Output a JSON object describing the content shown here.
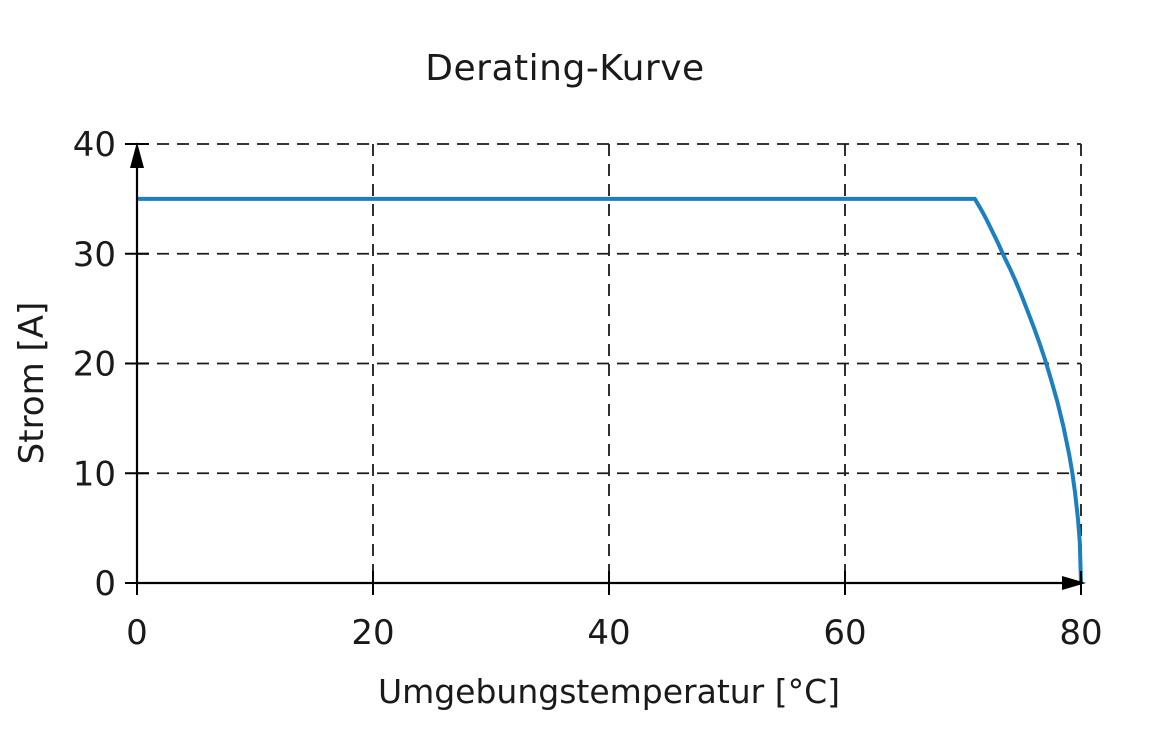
{
  "chart_data": {
    "type": "line",
    "title": "Derating-Kurve",
    "xlabel": "Umgebungstemperatur [°C]",
    "ylabel": "Strom [A]",
    "xlim": [
      0,
      80
    ],
    "ylim": [
      0,
      40
    ],
    "x_ticks": [
      0,
      20,
      40,
      60,
      80
    ],
    "y_ticks": [
      0,
      10,
      20,
      30,
      40
    ],
    "grid": "dashed",
    "legend": "none",
    "axis_arrows": true,
    "colors": {
      "line": "#1b7fc0",
      "axis": "#000000",
      "grid": "#1a1a1a",
      "text": "#1a1a1a",
      "background": "#ffffff"
    },
    "line_width": 4,
    "series": [
      {
        "name": "Derating-Kurve",
        "points": [
          [
            0,
            35
          ],
          [
            71,
            35
          ],
          [
            71.5,
            34.1
          ],
          [
            72,
            33.1
          ],
          [
            72.5,
            32.0
          ],
          [
            73,
            30.9
          ],
          [
            73.5,
            29.7
          ],
          [
            74,
            28.6
          ],
          [
            74.5,
            27.4
          ],
          [
            75,
            26.1
          ],
          [
            75.5,
            24.7
          ],
          [
            76,
            23.3
          ],
          [
            76.5,
            21.8
          ],
          [
            77,
            20.2
          ],
          [
            77.5,
            18.4
          ],
          [
            78,
            16.5
          ],
          [
            78.5,
            14.3
          ],
          [
            79,
            11.7
          ],
          [
            79.25,
            10.1
          ],
          [
            79.5,
            8.2
          ],
          [
            79.75,
            5.8
          ],
          [
            79.9,
            3.7
          ],
          [
            80,
            0
          ]
        ]
      }
    ]
  }
}
